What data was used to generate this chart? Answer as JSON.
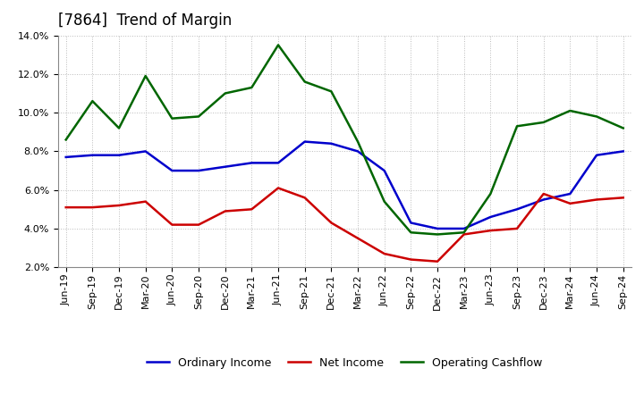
{
  "title": "[7864]  Trend of Margin",
  "x_labels": [
    "Jun-19",
    "Sep-19",
    "Dec-19",
    "Mar-20",
    "Jun-20",
    "Sep-20",
    "Dec-20",
    "Mar-21",
    "Jun-21",
    "Sep-21",
    "Dec-21",
    "Mar-22",
    "Jun-22",
    "Sep-22",
    "Dec-22",
    "Mar-23",
    "Jun-23",
    "Sep-23",
    "Dec-23",
    "Mar-24",
    "Jun-24",
    "Sep-24"
  ],
  "ordinary_income": [
    7.7,
    7.8,
    7.8,
    8.0,
    7.0,
    7.0,
    7.2,
    7.4,
    7.4,
    8.5,
    8.4,
    8.0,
    7.0,
    4.3,
    4.0,
    4.0,
    4.6,
    5.0,
    5.5,
    5.8,
    7.8,
    8.0
  ],
  "net_income": [
    5.1,
    5.1,
    5.2,
    5.4,
    4.2,
    4.2,
    4.9,
    5.0,
    6.1,
    5.6,
    4.3,
    3.5,
    2.7,
    2.4,
    2.3,
    3.7,
    3.9,
    4.0,
    5.8,
    5.3,
    5.5,
    5.6
  ],
  "operating_cashflow": [
    8.6,
    10.6,
    9.2,
    11.9,
    9.7,
    9.8,
    11.0,
    11.3,
    13.5,
    11.6,
    11.1,
    8.5,
    5.4,
    3.8,
    3.7,
    3.8,
    5.8,
    9.3,
    9.5,
    10.1,
    9.8,
    9.2
  ],
  "ordinary_income_color": "#0000CC",
  "net_income_color": "#CC0000",
  "operating_cashflow_color": "#006600",
  "ylim_min": 2.0,
  "ylim_max": 14.0,
  "ytick_values": [
    2.0,
    4.0,
    6.0,
    8.0,
    10.0,
    12.0,
    14.0
  ],
  "background_color": "#FFFFFF",
  "grid_color": "#BBBBBB",
  "title_fontsize": 12,
  "tick_fontsize": 8,
  "legend_fontsize": 9
}
